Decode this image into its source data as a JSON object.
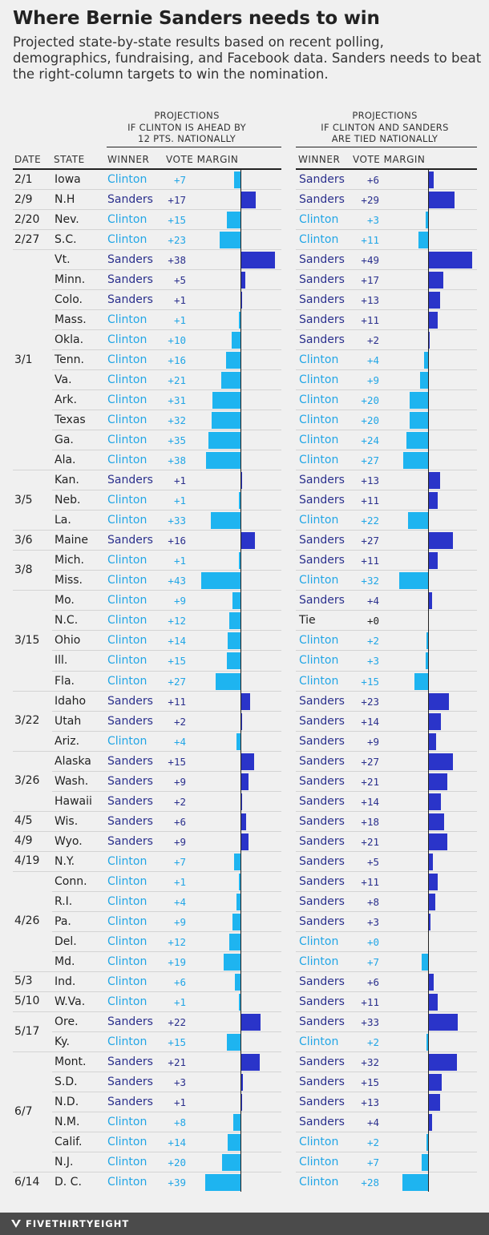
{
  "title": "Where Bernie Sanders needs to win",
  "subtitle": "Projected state-by-state results based on recent polling, demographics, fundraising, and Facebook data. Sanders needs to beat the right-column targets to win the nomination.",
  "left_header": [
    "PROJECTIONS",
    "IF CLINTON IS AHEAD BY",
    "12 PTS. NATIONALLY"
  ],
  "right_header": [
    "PROJECTIONS",
    "IF CLINTON AND SANDERS",
    "ARE TIED NATIONALLY"
  ],
  "col_labels": {
    "date": "DATE",
    "state": "STATE",
    "winner": "WINNER",
    "margin": "VOTE MARGIN"
  },
  "footer": "FIVETHIRTYEIGHT",
  "colors": {
    "clinton": "#1eb4f0",
    "sanders": "#2a34c9",
    "clinton_text": "#22a6e6",
    "sanders_text": "#2b308d",
    "tie_text": "#222222"
  },
  "chart_data": {
    "type": "bar",
    "title": "Where Bernie Sanders needs to win",
    "series_names": [
      "If Clinton is ahead by 12 pts. nationally",
      "If Clinton and Sanders are tied nationally"
    ],
    "date_groups": [
      {
        "date": "2/1",
        "start": 0,
        "count": 1
      },
      {
        "date": "2/9",
        "start": 1,
        "count": 1
      },
      {
        "date": "2/20",
        "start": 2,
        "count": 1
      },
      {
        "date": "2/27",
        "start": 3,
        "count": 1
      },
      {
        "date": "3/1",
        "start": 4,
        "count": 11
      },
      {
        "date": "3/5",
        "start": 15,
        "count": 3
      },
      {
        "date": "3/6",
        "start": 18,
        "count": 1
      },
      {
        "date": "3/8",
        "start": 19,
        "count": 2
      },
      {
        "date": "3/15",
        "start": 21,
        "count": 5
      },
      {
        "date": "3/22",
        "start": 26,
        "count": 3
      },
      {
        "date": "3/26",
        "start": 29,
        "count": 3
      },
      {
        "date": "4/5",
        "start": 32,
        "count": 1
      },
      {
        "date": "4/9",
        "start": 33,
        "count": 1
      },
      {
        "date": "4/19",
        "start": 34,
        "count": 1
      },
      {
        "date": "4/26",
        "start": 35,
        "count": 5
      },
      {
        "date": "5/3",
        "start": 40,
        "count": 1
      },
      {
        "date": "5/10",
        "start": 41,
        "count": 1
      },
      {
        "date": "5/17",
        "start": 42,
        "count": 2
      },
      {
        "date": "6/7",
        "start": 44,
        "count": 6
      },
      {
        "date": "6/14",
        "start": 50,
        "count": 1
      }
    ],
    "rows": [
      {
        "state": "Iowa",
        "a": {
          "winner": "Clinton",
          "label": "+7",
          "value": 7
        },
        "b": {
          "winner": "Sanders",
          "label": "+6",
          "value": 6
        }
      },
      {
        "state": "N.H",
        "a": {
          "winner": "Sanders",
          "label": "+17",
          "value": 17
        },
        "b": {
          "winner": "Sanders",
          "label": "+29",
          "value": 29
        }
      },
      {
        "state": "Nev.",
        "a": {
          "winner": "Clinton",
          "label": "+15",
          "value": 15
        },
        "b": {
          "winner": "Clinton",
          "label": "+3",
          "value": 3
        }
      },
      {
        "state": "S.C.",
        "a": {
          "winner": "Clinton",
          "label": "+23",
          "value": 23
        },
        "b": {
          "winner": "Clinton",
          "label": "+11",
          "value": 11
        }
      },
      {
        "state": "Vt.",
        "a": {
          "winner": "Sanders",
          "label": "+38",
          "value": 38
        },
        "b": {
          "winner": "Sanders",
          "label": "+49",
          "value": 49
        }
      },
      {
        "state": "Minn.",
        "a": {
          "winner": "Sanders",
          "label": "+5",
          "value": 5
        },
        "b": {
          "winner": "Sanders",
          "label": "+17",
          "value": 17
        }
      },
      {
        "state": "Colo.",
        "a": {
          "winner": "Sanders",
          "label": "+1",
          "value": 1
        },
        "b": {
          "winner": "Sanders",
          "label": "+13",
          "value": 13
        }
      },
      {
        "state": "Mass.",
        "a": {
          "winner": "Clinton",
          "label": "+1",
          "value": 1
        },
        "b": {
          "winner": "Sanders",
          "label": "+11",
          "value": 11
        }
      },
      {
        "state": "Okla.",
        "a": {
          "winner": "Clinton",
          "label": "+10",
          "value": 10
        },
        "b": {
          "winner": "Sanders",
          "label": "+2",
          "value": 2
        }
      },
      {
        "state": "Tenn.",
        "a": {
          "winner": "Clinton",
          "label": "+16",
          "value": 16
        },
        "b": {
          "winner": "Clinton",
          "label": "+4",
          "value": 4
        }
      },
      {
        "state": "Va.",
        "a": {
          "winner": "Clinton",
          "label": "+21",
          "value": 21
        },
        "b": {
          "winner": "Clinton",
          "label": "+9",
          "value": 9
        }
      },
      {
        "state": "Ark.",
        "a": {
          "winner": "Clinton",
          "label": "+31",
          "value": 31
        },
        "b": {
          "winner": "Clinton",
          "label": "+20",
          "value": 20
        }
      },
      {
        "state": "Texas",
        "a": {
          "winner": "Clinton",
          "label": "+32",
          "value": 32
        },
        "b": {
          "winner": "Clinton",
          "label": "+20",
          "value": 20
        }
      },
      {
        "state": "Ga.",
        "a": {
          "winner": "Clinton",
          "label": "+35",
          "value": 35
        },
        "b": {
          "winner": "Clinton",
          "label": "+24",
          "value": 24
        }
      },
      {
        "state": "Ala.",
        "a": {
          "winner": "Clinton",
          "label": "+38",
          "value": 38
        },
        "b": {
          "winner": "Clinton",
          "label": "+27",
          "value": 27
        }
      },
      {
        "state": "Kan.",
        "a": {
          "winner": "Sanders",
          "label": "+1",
          "value": 1
        },
        "b": {
          "winner": "Sanders",
          "label": "+13",
          "value": 13
        }
      },
      {
        "state": "Neb.",
        "a": {
          "winner": "Clinton",
          "label": "+1",
          "value": 1
        },
        "b": {
          "winner": "Sanders",
          "label": "+11",
          "value": 11
        }
      },
      {
        "state": "La.",
        "a": {
          "winner": "Clinton",
          "label": "+33",
          "value": 33
        },
        "b": {
          "winner": "Clinton",
          "label": "+22",
          "value": 22
        }
      },
      {
        "state": "Maine",
        "a": {
          "winner": "Sanders",
          "label": "+16",
          "value": 16
        },
        "b": {
          "winner": "Sanders",
          "label": "+27",
          "value": 27
        }
      },
      {
        "state": "Mich.",
        "a": {
          "winner": "Clinton",
          "label": "+1",
          "value": 1
        },
        "b": {
          "winner": "Sanders",
          "label": "+11",
          "value": 11
        }
      },
      {
        "state": "Miss.",
        "a": {
          "winner": "Clinton",
          "label": "+43",
          "value": 43
        },
        "b": {
          "winner": "Clinton",
          "label": "+32",
          "value": 32
        }
      },
      {
        "state": "Mo.",
        "a": {
          "winner": "Clinton",
          "label": "+9",
          "value": 9
        },
        "b": {
          "winner": "Sanders",
          "label": "+4",
          "value": 4
        }
      },
      {
        "state": "N.C.",
        "a": {
          "winner": "Clinton",
          "label": "+12",
          "value": 12
        },
        "b": {
          "winner": "Tie",
          "label": "+0",
          "value": 0
        }
      },
      {
        "state": "Ohio",
        "a": {
          "winner": "Clinton",
          "label": "+14",
          "value": 14
        },
        "b": {
          "winner": "Clinton",
          "label": "+2",
          "value": 2
        }
      },
      {
        "state": "Ill.",
        "a": {
          "winner": "Clinton",
          "label": "+15",
          "value": 15
        },
        "b": {
          "winner": "Clinton",
          "label": "+3",
          "value": 3
        }
      },
      {
        "state": "Fla.",
        "a": {
          "winner": "Clinton",
          "label": "+27",
          "value": 27
        },
        "b": {
          "winner": "Clinton",
          "label": "+15",
          "value": 15
        }
      },
      {
        "state": "Idaho",
        "a": {
          "winner": "Sanders",
          "label": "+11",
          "value": 11
        },
        "b": {
          "winner": "Sanders",
          "label": "+23",
          "value": 23
        }
      },
      {
        "state": "Utah",
        "a": {
          "winner": "Sanders",
          "label": "+2",
          "value": 2
        },
        "b": {
          "winner": "Sanders",
          "label": "+14",
          "value": 14
        }
      },
      {
        "state": "Ariz.",
        "a": {
          "winner": "Clinton",
          "label": "+4",
          "value": 4
        },
        "b": {
          "winner": "Sanders",
          "label": "+9",
          "value": 9
        }
      },
      {
        "state": "Alaska",
        "a": {
          "winner": "Sanders",
          "label": "+15",
          "value": 15
        },
        "b": {
          "winner": "Sanders",
          "label": "+27",
          "value": 27
        }
      },
      {
        "state": "Wash.",
        "a": {
          "winner": "Sanders",
          "label": "+9",
          "value": 9
        },
        "b": {
          "winner": "Sanders",
          "label": "+21",
          "value": 21
        }
      },
      {
        "state": "Hawaii",
        "a": {
          "winner": "Sanders",
          "label": "+2",
          "value": 2
        },
        "b": {
          "winner": "Sanders",
          "label": "+14",
          "value": 14
        }
      },
      {
        "state": "Wis.",
        "a": {
          "winner": "Sanders",
          "label": "+6",
          "value": 6
        },
        "b": {
          "winner": "Sanders",
          "label": "+18",
          "value": 18
        }
      },
      {
        "state": "Wyo.",
        "a": {
          "winner": "Sanders",
          "label": "+9",
          "value": 9
        },
        "b": {
          "winner": "Sanders",
          "label": "+21",
          "value": 21
        }
      },
      {
        "state": "N.Y.",
        "a": {
          "winner": "Clinton",
          "label": "+7",
          "value": 7
        },
        "b": {
          "winner": "Sanders",
          "label": "+5",
          "value": 5
        }
      },
      {
        "state": "Conn.",
        "a": {
          "winner": "Clinton",
          "label": "+1",
          "value": 1
        },
        "b": {
          "winner": "Sanders",
          "label": "+11",
          "value": 11
        }
      },
      {
        "state": "R.I.",
        "a": {
          "winner": "Clinton",
          "label": "+4",
          "value": 4
        },
        "b": {
          "winner": "Sanders",
          "label": "+8",
          "value": 8
        }
      },
      {
        "state": "Pa.",
        "a": {
          "winner": "Clinton",
          "label": "+9",
          "value": 9
        },
        "b": {
          "winner": "Sanders",
          "label": "+3",
          "value": 3
        }
      },
      {
        "state": "Del.",
        "a": {
          "winner": "Clinton",
          "label": "+12",
          "value": 12
        },
        "b": {
          "winner": "Clinton",
          "label": "+0",
          "value": 0
        }
      },
      {
        "state": "Md.",
        "a": {
          "winner": "Clinton",
          "label": "+19",
          "value": 19
        },
        "b": {
          "winner": "Clinton",
          "label": "+7",
          "value": 7
        }
      },
      {
        "state": "Ind.",
        "a": {
          "winner": "Clinton",
          "label": "+6",
          "value": 6
        },
        "b": {
          "winner": "Sanders",
          "label": "+6",
          "value": 6
        }
      },
      {
        "state": "W.Va.",
        "a": {
          "winner": "Clinton",
          "label": "+1",
          "value": 1
        },
        "b": {
          "winner": "Sanders",
          "label": "+11",
          "value": 11
        }
      },
      {
        "state": "Ore.",
        "a": {
          "winner": "Sanders",
          "label": "+22",
          "value": 22
        },
        "b": {
          "winner": "Sanders",
          "label": "+33",
          "value": 33
        }
      },
      {
        "state": "Ky.",
        "a": {
          "winner": "Clinton",
          "label": "+15",
          "value": 15
        },
        "b": {
          "winner": "Clinton",
          "label": "+2",
          "value": 2
        }
      },
      {
        "state": "Mont.",
        "a": {
          "winner": "Sanders",
          "label": "+21",
          "value": 21
        },
        "b": {
          "winner": "Sanders",
          "label": "+32",
          "value": 32
        }
      },
      {
        "state": "S.D.",
        "a": {
          "winner": "Sanders",
          "label": "+3",
          "value": 3
        },
        "b": {
          "winner": "Sanders",
          "label": "+15",
          "value": 15
        }
      },
      {
        "state": "N.D.",
        "a": {
          "winner": "Sanders",
          "label": "+1",
          "value": 1
        },
        "b": {
          "winner": "Sanders",
          "label": "+13",
          "value": 13
        }
      },
      {
        "state": "N.M.",
        "a": {
          "winner": "Clinton",
          "label": "+8",
          "value": 8
        },
        "b": {
          "winner": "Sanders",
          "label": "+4",
          "value": 4
        }
      },
      {
        "state": "Calif.",
        "a": {
          "winner": "Clinton",
          "label": "+14",
          "value": 14
        },
        "b": {
          "winner": "Clinton",
          "label": "+2",
          "value": 2
        }
      },
      {
        "state": "N.J.",
        "a": {
          "winner": "Clinton",
          "label": "+20",
          "value": 20
        },
        "b": {
          "winner": "Clinton",
          "label": "+7",
          "value": 7
        }
      },
      {
        "state": "D. C.",
        "a": {
          "winner": "Clinton",
          "label": "+39",
          "value": 39
        },
        "b": {
          "winner": "Clinton",
          "label": "+28",
          "value": 28
        }
      }
    ]
  }
}
